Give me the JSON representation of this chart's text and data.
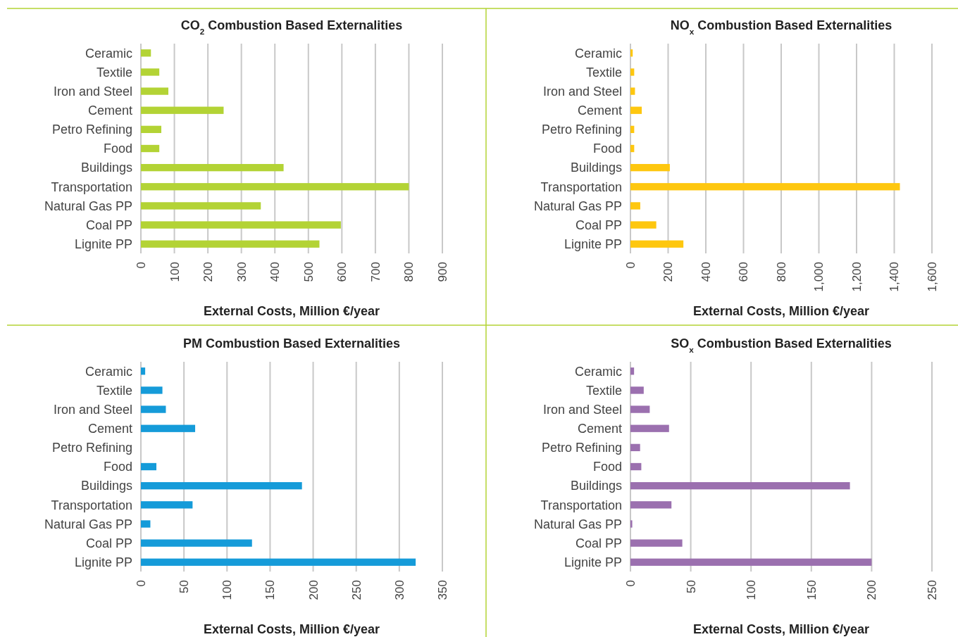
{
  "chart_data": [
    {
      "type": "bar",
      "orientation": "horizontal",
      "title": "CO$_{2}$ Combustion Based Externalities",
      "xlabel": "External Costs, Million €/year",
      "categories": [
        "Ceramic",
        "Textile",
        "Iron and Steel",
        "Cement",
        "Petro Refining",
        "Food",
        "Buildings",
        "Transportation",
        "Natural Gas PP",
        "Coal PP",
        "Lignite PP"
      ],
      "series": [
        {
          "color": "#b3d335",
          "values": [
            30,
            55,
            82,
            247,
            61,
            55,
            426,
            800,
            358,
            597,
            533
          ]
        }
      ],
      "xlim": [
        0,
        900
      ],
      "xticks": [
        0,
        100,
        200,
        300,
        400,
        500,
        600,
        700,
        800,
        900
      ],
      "grid": "x"
    },
    {
      "type": "bar",
      "orientation": "horizontal",
      "title": "NO$_{x}$ Combustion Based Externalities",
      "xlabel": "External Costs, Million €/year",
      "categories": [
        "Ceramic",
        "Textile",
        "Iron and Steel",
        "Cement",
        "Petro Refining",
        "Food",
        "Buildings",
        "Transportation",
        "Natural Gas PP",
        "Coal PP",
        "Lignite PP"
      ],
      "series": [
        {
          "color": "#fec70f",
          "values": [
            12,
            20,
            24,
            60,
            20,
            20,
            209,
            1430,
            52,
            137,
            281
          ]
        }
      ],
      "xlim": [
        0,
        1600
      ],
      "xticks": [
        0,
        200,
        400,
        600,
        800,
        {
          "value": 1000,
          "label": "1,000"
        },
        {
          "value": 1200,
          "label": "1,200"
        },
        {
          "value": 1400,
          "label": "1,400"
        },
        {
          "value": 1600,
          "label": "1,600"
        }
      ],
      "grid": "x"
    },
    {
      "type": "bar",
      "orientation": "horizontal",
      "title": "PM Combustion Based Externalities",
      "xlabel": "External Costs, Million €/year",
      "categories": [
        "Ceramic",
        "Textile",
        "Iron and Steel",
        "Cement",
        "Petro Refining",
        "Food",
        "Buildings",
        "Transportation",
        "Natural Gas PP",
        "Coal PP",
        "Lignite PP"
      ],
      "series": [
        {
          "color": "#159bd9",
          "values": [
            5,
            25,
            29,
            63,
            0,
            18,
            187,
            60,
            11,
            129,
            319
          ]
        }
      ],
      "xlim": [
        0,
        350
      ],
      "xticks": [
        0,
        50,
        100,
        150,
        200,
        250,
        300,
        350
      ],
      "grid": "x"
    },
    {
      "type": "bar",
      "orientation": "horizontal",
      "title": "SO$_{x}$ Combustion Based Externalities",
      "xlabel": "External Costs, Million €/year",
      "categories": [
        "Ceramic",
        "Textile",
        "Iron and Steel",
        "Cement",
        "Petro Refining",
        "Food",
        "Buildings",
        "Transportation",
        "Natural Gas PP",
        "Coal PP",
        "Lignite PP"
      ],
      "series": [
        {
          "color": "#9b70af",
          "values": [
            3,
            11,
            16,
            32,
            8,
            9,
            182,
            34,
            1.5,
            43,
            200
          ]
        }
      ],
      "xlim": [
        0,
        250
      ],
      "xticks": [
        0,
        50,
        100,
        150,
        200,
        250
      ],
      "grid": "x"
    }
  ]
}
